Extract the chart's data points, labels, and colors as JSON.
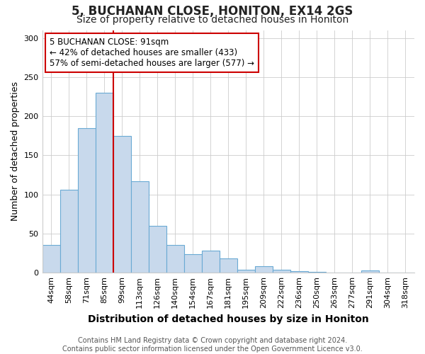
{
  "title1": "5, BUCHANAN CLOSE, HONITON, EX14 2GS",
  "title2": "Size of property relative to detached houses in Honiton",
  "xlabel": "Distribution of detached houses by size in Honiton",
  "ylabel": "Number of detached properties",
  "categories": [
    "44sqm",
    "58sqm",
    "71sqm",
    "85sqm",
    "99sqm",
    "113sqm",
    "126sqm",
    "140sqm",
    "154sqm",
    "167sqm",
    "181sqm",
    "195sqm",
    "209sqm",
    "222sqm",
    "236sqm",
    "250sqm",
    "263sqm",
    "277sqm",
    "291sqm",
    "304sqm",
    "318sqm"
  ],
  "values": [
    35,
    106,
    185,
    230,
    175,
    117,
    60,
    35,
    24,
    28,
    18,
    4,
    8,
    4,
    2,
    1,
    0,
    0,
    3,
    0,
    0
  ],
  "bar_color": "#c8d9ec",
  "bar_edge_color": "#6aaad4",
  "bar_width": 1.0,
  "annotation_line1": "5 BUCHANAN CLOSE: 91sqm",
  "annotation_line2": "← 42% of detached houses are smaller (433)",
  "annotation_line3": "57% of semi-detached houses are larger (577) →",
  "annotation_box_color": "white",
  "annotation_box_edge_color": "#cc0000",
  "red_line_x": 3.5,
  "red_line_color": "#cc0000",
  "ylim": [
    0,
    310
  ],
  "yticks": [
    0,
    50,
    100,
    150,
    200,
    250,
    300
  ],
  "footnote1": "Contains HM Land Registry data © Crown copyright and database right 2024.",
  "footnote2": "Contains public sector information licensed under the Open Government Licence v3.0.",
  "grid_color": "#cccccc",
  "background_color": "#ffffff",
  "title1_fontsize": 12,
  "title2_fontsize": 10,
  "xlabel_fontsize": 10,
  "ylabel_fontsize": 9,
  "tick_fontsize": 8,
  "annot_fontsize": 8.5,
  "footnote_fontsize": 7
}
